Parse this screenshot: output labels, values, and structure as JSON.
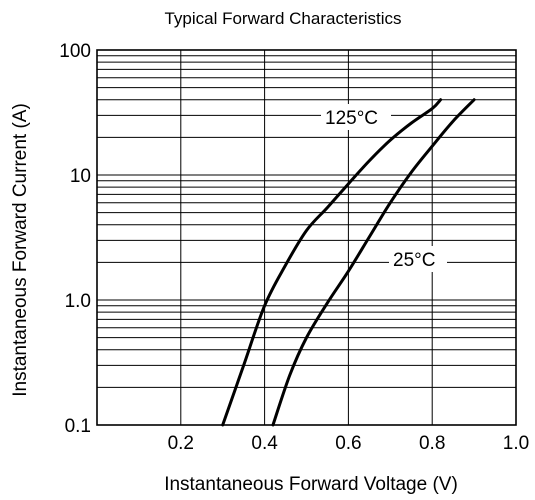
{
  "chart_data": {
    "type": "line",
    "title": "Typical Forward Characteristics",
    "xlabel": "Instantaneous Forward Voltage (V)",
    "ylabel": "Instantaneous Forward Current (A)",
    "x_range": [
      0,
      1.0
    ],
    "y_range": [
      0.1,
      100
    ],
    "y_scale": "log",
    "grid": "on",
    "x_ticks": [
      {
        "value": 0.2,
        "label": "0.2"
      },
      {
        "value": 0.4,
        "label": "0.4"
      },
      {
        "value": 0.6,
        "label": "0.6"
      },
      {
        "value": 0.8,
        "label": "0.8"
      },
      {
        "value": 1.0,
        "label": "1.0"
      }
    ],
    "y_ticks": [
      {
        "value": 0.1,
        "label": "0.1"
      },
      {
        "value": 1,
        "label": "1.0"
      },
      {
        "value": 10,
        "label": "10"
      },
      {
        "value": 100,
        "label": "100"
      }
    ],
    "x_grid": [
      0.2,
      0.4,
      0.6,
      0.8
    ],
    "y_grid": [
      0.2,
      0.3,
      0.4,
      0.5,
      0.6,
      0.7,
      0.8,
      0.9,
      1,
      2,
      3,
      4,
      5,
      6,
      7,
      8,
      9,
      10,
      20,
      30,
      40,
      50,
      60,
      70,
      80,
      90
    ],
    "series": [
      {
        "name": "125°C",
        "x": [
          0.3,
          0.35,
          0.4,
          0.45,
          0.5,
          0.55,
          0.6,
          0.65,
          0.7,
          0.75,
          0.8,
          0.82
        ],
        "y": [
          0.1,
          0.3,
          0.9,
          1.9,
          3.6,
          5.5,
          8.5,
          13,
          19,
          26,
          34,
          40
        ]
      },
      {
        "name": "25°C",
        "x": [
          0.42,
          0.46,
          0.5,
          0.55,
          0.6,
          0.65,
          0.7,
          0.75,
          0.8,
          0.85,
          0.9
        ],
        "y": [
          0.1,
          0.25,
          0.5,
          0.95,
          1.7,
          3.2,
          6.0,
          10.5,
          17,
          27,
          40
        ]
      }
    ]
  }
}
